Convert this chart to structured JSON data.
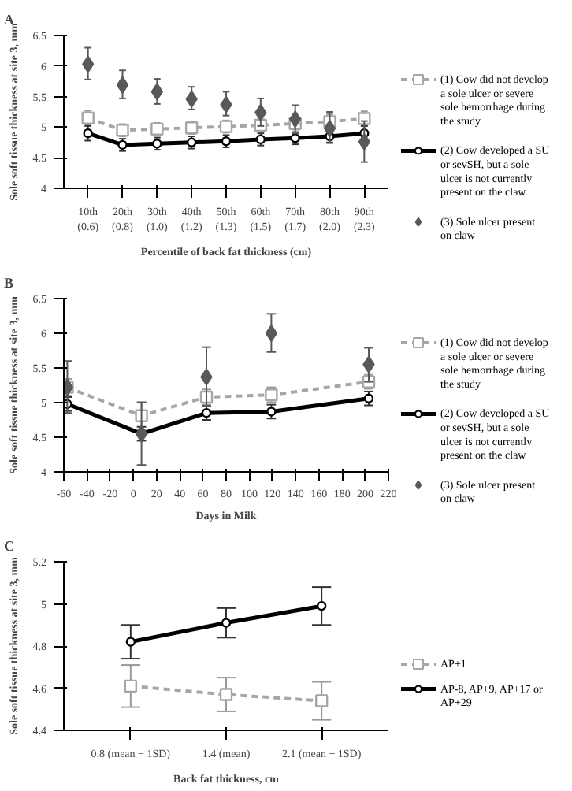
{
  "chart_data": [
    {
      "type": "line",
      "title": "A",
      "xlabel": "Percentile of back fat thickness (cm)",
      "ylabel": "Sole soft tissue thickness at site 3, mm",
      "categories": [
        "10th\n(0.6)",
        "20th\n(0.8)",
        "30th\n(1.0)",
        "40th\n(1.2)",
        "50th\n(1.3)",
        "60th\n(1.5)",
        "70th\n(1.7)",
        "80th\n(2.0)",
        "90th\n(2.3)"
      ],
      "ylim": [
        4,
        6.5
      ],
      "yticks": [
        4,
        4.5,
        5,
        5.5,
        6,
        6.5
      ],
      "grid": false,
      "legend": "right",
      "series": [
        {
          "name": "(1) Cow did not develop a sole ulcer or severe sole hemorrhage during the study",
          "color": "#a6a6a6",
          "marker": "square",
          "line_style": "dashed",
          "values": [
            5.15,
            4.95,
            4.97,
            4.99,
            5.01,
            5.03,
            5.06,
            5.09,
            5.14
          ],
          "errors": [
            0.12,
            0.1,
            0.1,
            0.1,
            0.1,
            0.1,
            0.1,
            0.12,
            0.12
          ]
        },
        {
          "name": "(2) Cow developed a SU or sevSH, but a sole ulcer is not currently present on the claw",
          "color": "#000000",
          "marker": "circle",
          "line_style": "solid",
          "values": [
            4.9,
            4.71,
            4.73,
            4.75,
            4.77,
            4.8,
            4.82,
            4.85,
            4.9
          ],
          "errors": [
            0.12,
            0.1,
            0.1,
            0.1,
            0.1,
            0.1,
            0.1,
            0.1,
            0.12
          ]
        },
        {
          "name": "(3) Sole ulcer present on claw",
          "type": "scatter",
          "color": "#595959",
          "marker": "diamond",
          "values": [
            6.03,
            5.69,
            5.58,
            5.46,
            5.37,
            5.24,
            5.13,
            4.98,
            4.76
          ],
          "errors": [
            [
              5.78,
              6.3
            ],
            [
              5.47,
              5.93
            ],
            [
              5.38,
              5.79
            ],
            [
              5.29,
              5.66
            ],
            [
              5.19,
              5.58
            ],
            [
              5.02,
              5.47
            ],
            [
              4.9,
              5.36
            ],
            [
              4.74,
              5.25
            ],
            [
              4.43,
              5.1
            ]
          ]
        }
      ]
    },
    {
      "type": "line",
      "title": "B",
      "xlabel": "Days in Milk",
      "ylabel": "Sole soft tissue thickness at site 3, mm",
      "xlim": [
        -60,
        220
      ],
      "xticks": [
        -60,
        -40,
        -20,
        0,
        20,
        40,
        60,
        80,
        100,
        120,
        140,
        160,
        180,
        200,
        220
      ],
      "ylim": [
        4,
        6.5
      ],
      "yticks": [
        4,
        4.5,
        5,
        5.5,
        6,
        6.5
      ],
      "grid": false,
      "legend": "right",
      "series": [
        {
          "name": "(1) Cow did not develop a sole ulcer or severe sole hemorrhage during the study",
          "color": "#a6a6a6",
          "marker": "square",
          "line_style": "dashed",
          "x": [
            -57,
            7,
            63,
            119,
            203
          ],
          "values": [
            5.22,
            4.81,
            5.08,
            5.11,
            5.3
          ],
          "errors": [
            0.12,
            0.2,
            0.11,
            0.11,
            0.1
          ]
        },
        {
          "name": "(2) Cow developed a SU or sevSH, but a sole ulcer is not currently present on the claw",
          "color": "#000000",
          "marker": "circle",
          "line_style": "solid",
          "x": [
            -57,
            7,
            63,
            119,
            203
          ],
          "values": [
            4.98,
            4.55,
            4.85,
            4.87,
            5.06
          ],
          "errors": [
            0.1,
            0.1,
            0.1,
            0.1,
            0.1
          ]
        },
        {
          "name": "(3) Sole ulcer present on claw",
          "type": "scatter",
          "color": "#595959",
          "marker": "diamond",
          "x": [
            -57,
            7,
            63,
            119,
            203
          ],
          "values": [
            5.22,
            4.55,
            5.37,
            6.0,
            5.55
          ],
          "errors": [
            [
              4.85,
              5.6
            ],
            [
              4.1,
              5.0
            ],
            [
              4.95,
              5.8
            ],
            [
              5.73,
              6.28
            ],
            [
              5.3,
              5.79
            ]
          ]
        }
      ]
    },
    {
      "type": "line",
      "title": "C",
      "xlabel": "Back fat thickness, cm",
      "ylabel": "Sole soft tissue thickness at site 3, mm",
      "categories": [
        "0.8 (mean − 1SD)",
        "1.4 (mean)",
        "2.1 (mean + 1SD)"
      ],
      "ylim": [
        4.4,
        5.2
      ],
      "yticks": [
        4.4,
        4.6,
        4.8,
        5,
        5.2
      ],
      "grid": false,
      "legend": "right",
      "series": [
        {
          "name": "AP+1",
          "color": "#a6a6a6",
          "marker": "square",
          "line_style": "dashed",
          "values": [
            4.61,
            4.57,
            4.54
          ],
          "errors": [
            0.1,
            0.08,
            0.09
          ]
        },
        {
          "name": "AP-8, AP+9, AP+17 or AP+29",
          "color": "#000000",
          "marker": "circle",
          "line_style": "solid",
          "values": [
            4.82,
            4.91,
            4.99
          ],
          "errors": [
            0.08,
            0.07,
            0.09
          ]
        }
      ]
    }
  ]
}
